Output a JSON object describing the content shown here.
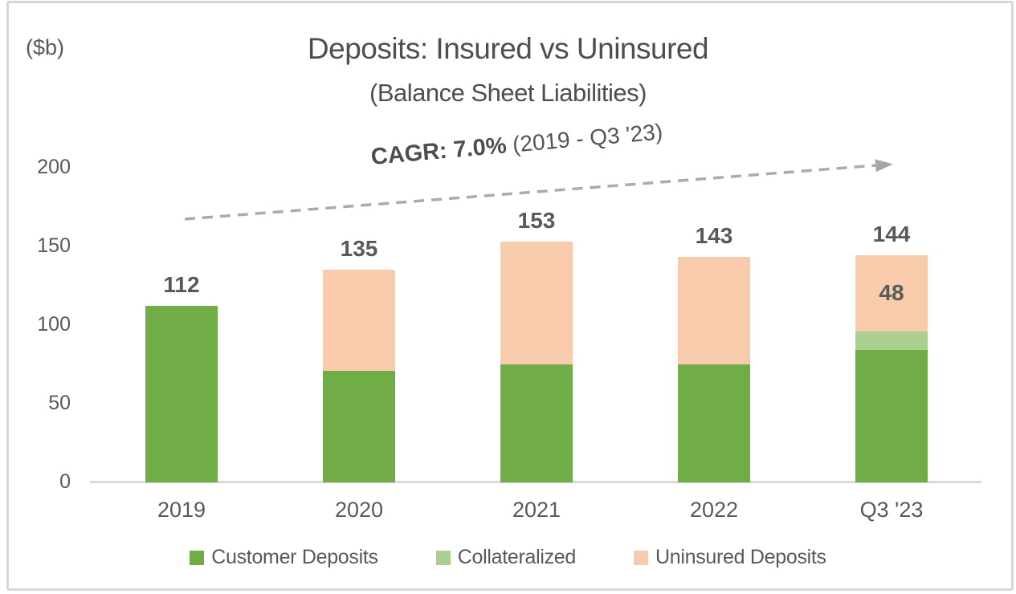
{
  "unit_label": "($b)",
  "title": "Deposits: Insured vs Uninsured",
  "subtitle": "(Balance Sheet Liabilities)",
  "annotation": {
    "bold_part": "CAGR: 7.0%",
    "regular_part": " (2019 - Q3 '23)",
    "arrow_color": "#ababab",
    "arrowhead_color": "#a6a6a6"
  },
  "colors": {
    "text": "#595959",
    "title_text": "#4e4e4e",
    "axis_line": "#d9d9d9",
    "customer_deposits": "#70ad47",
    "collateralized": "#a9d08e",
    "uninsured_deposits": "#f8cbad",
    "frame_border": "#d6d6d6"
  },
  "chart_data": {
    "type": "bar",
    "stacked": true,
    "title": "Deposits: Insured vs Uninsured",
    "subtitle": "(Balance Sheet Liabilities)",
    "unit": "($b)",
    "categories": [
      "2019",
      "2020",
      "2021",
      "2022",
      "Q3 '23"
    ],
    "series": [
      {
        "name": "Customer Deposits",
        "color": "#70ad47",
        "values": [
          112,
          71,
          75,
          75,
          84
        ]
      },
      {
        "name": "Collateralized",
        "color": "#a9d08e",
        "values": [
          0,
          0,
          0,
          0,
          12
        ]
      },
      {
        "name": "Uninsured Deposits",
        "color": "#f8cbad",
        "values": [
          0,
          64,
          78,
          68,
          48
        ]
      }
    ],
    "totals": [
      112,
      135,
      153,
      143,
      144
    ],
    "total_labels": [
      "112",
      "135",
      "153",
      "143",
      "144"
    ],
    "segment_labels": [
      {
        "category_index": 4,
        "series_index": 2,
        "text": "48"
      }
    ],
    "annotation": "CAGR: 7.0% (2019 - Q3 '23)",
    "ylim": [
      0,
      200
    ],
    "yticks": [
      0,
      50,
      100,
      150,
      200
    ],
    "grid": false,
    "legend_position": "bottom"
  }
}
